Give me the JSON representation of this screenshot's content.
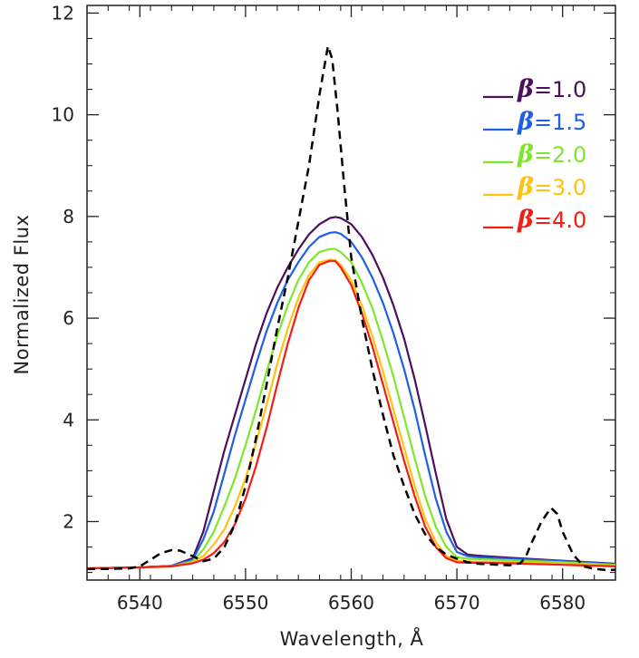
{
  "chart_data": {
    "type": "line",
    "xlabel": "Wavelength, Å",
    "ylabel": "Normalized Flux",
    "xlim": [
      6535,
      6585
    ],
    "ylim": [
      0.85,
      12.15
    ],
    "xticks": [
      6540,
      6550,
      6560,
      6570,
      6580
    ],
    "yticks": [
      2,
      4,
      6,
      8,
      10,
      12
    ],
    "xtick_labels": [
      "6540",
      "6550",
      "6560",
      "6570",
      "6580"
    ],
    "ytick_labels": [
      "2",
      "4",
      "6",
      "8",
      "10",
      "12"
    ],
    "grid": false,
    "legend_position": "top-right",
    "legend_symbol": "β",
    "observed": {
      "style": "dashed",
      "color": "#000000",
      "x": [
        6535,
        6537,
        6539,
        6540,
        6541,
        6542,
        6543,
        6543.8,
        6545,
        6546,
        6547,
        6548,
        6549,
        6550,
        6551,
        6552,
        6553,
        6554,
        6555,
        6556,
        6557,
        6557.8,
        6558.2,
        6558.7,
        6559.3,
        6560,
        6561,
        6562,
        6563,
        6564,
        6565,
        6566,
        6567,
        6568,
        6569,
        6570,
        6571,
        6572,
        6573,
        6574,
        6575,
        6576,
        6576.5,
        6577,
        6578,
        6578.9,
        6579.5,
        6580,
        6581,
        6582,
        6583,
        6584,
        6585
      ],
      "y": [
        1.07,
        1.07,
        1.08,
        1.12,
        1.25,
        1.38,
        1.44,
        1.43,
        1.32,
        1.22,
        1.27,
        1.5,
        1.95,
        2.7,
        3.65,
        4.7,
        5.8,
        6.8,
        7.9,
        9.0,
        10.4,
        11.35,
        11.1,
        10.1,
        8.7,
        7.2,
        6.0,
        5.0,
        4.1,
        3.3,
        2.7,
        2.15,
        1.75,
        1.5,
        1.35,
        1.27,
        1.2,
        1.17,
        1.16,
        1.15,
        1.14,
        1.18,
        1.3,
        1.55,
        2.0,
        2.27,
        2.15,
        1.8,
        1.35,
        1.12,
        1.07,
        1.05,
        1.05
      ]
    },
    "series": [
      {
        "name": "1.0",
        "color": "#4b0f5e",
        "x": [
          6535,
          6540,
          6543,
          6545,
          6546,
          6547,
          6548,
          6549,
          6550,
          6551,
          6552,
          6553,
          6554,
          6555,
          6556,
          6557,
          6558,
          6558.5,
          6559,
          6560,
          6561,
          6562,
          6563,
          6564,
          6565,
          6566,
          6567,
          6568,
          6569,
          6570,
          6571,
          6572,
          6575,
          6580,
          6585
        ],
        "y": [
          1.08,
          1.1,
          1.13,
          1.28,
          1.8,
          2.6,
          3.4,
          4.1,
          4.8,
          5.5,
          6.1,
          6.6,
          7.0,
          7.35,
          7.65,
          7.85,
          7.97,
          7.99,
          7.97,
          7.85,
          7.6,
          7.25,
          6.8,
          6.25,
          5.6,
          4.8,
          3.9,
          2.95,
          2.05,
          1.5,
          1.35,
          1.33,
          1.29,
          1.23,
          1.17
        ]
      },
      {
        "name": "1.5",
        "color": "#1f5fe6",
        "x": [
          6535,
          6540,
          6543,
          6545,
          6546,
          6547,
          6548,
          6549,
          6550,
          6551,
          6552,
          6553,
          6554,
          6555,
          6556,
          6557,
          6558,
          6558.5,
          6559,
          6560,
          6561,
          6562,
          6563,
          6564,
          6565,
          6566,
          6567,
          6568,
          6569,
          6570,
          6571,
          6572,
          6575,
          6580,
          6585
        ],
        "y": [
          1.08,
          1.1,
          1.13,
          1.25,
          1.65,
          2.2,
          2.95,
          3.7,
          4.4,
          5.1,
          5.75,
          6.3,
          6.75,
          7.1,
          7.4,
          7.6,
          7.68,
          7.69,
          7.66,
          7.5,
          7.2,
          6.8,
          6.3,
          5.7,
          5.0,
          4.2,
          3.3,
          2.45,
          1.8,
          1.4,
          1.32,
          1.3,
          1.27,
          1.22,
          1.16
        ]
      },
      {
        "name": "2.0",
        "color": "#7fe72a",
        "x": [
          6535,
          6540,
          6543,
          6545,
          6546,
          6547,
          6548,
          6549,
          6550,
          6551,
          6552,
          6553,
          6554,
          6555,
          6556,
          6557,
          6558,
          6558.5,
          6559,
          6560,
          6561,
          6562,
          6563,
          6564,
          6565,
          6566,
          6567,
          6568,
          6569,
          6570,
          6571,
          6572,
          6575,
          6580,
          6585
        ],
        "y": [
          1.08,
          1.1,
          1.12,
          1.22,
          1.45,
          1.8,
          2.3,
          2.85,
          3.5,
          4.2,
          4.95,
          5.65,
          6.25,
          6.75,
          7.1,
          7.3,
          7.36,
          7.36,
          7.3,
          7.1,
          6.7,
          6.2,
          5.55,
          4.85,
          4.05,
          3.25,
          2.5,
          1.9,
          1.5,
          1.3,
          1.27,
          1.26,
          1.24,
          1.2,
          1.15
        ]
      },
      {
        "name": "3.0",
        "color": "#ffc20e",
        "x": [
          6535,
          6540,
          6543,
          6545,
          6546,
          6547,
          6548,
          6549,
          6550,
          6551,
          6552,
          6553,
          6554,
          6555,
          6556,
          6557,
          6558,
          6558.5,
          6559,
          6560,
          6561,
          6562,
          6563,
          6564,
          6565,
          6566,
          6567,
          6568,
          6569,
          6570,
          6571,
          6572,
          6575,
          6580,
          6585
        ],
        "y": [
          1.08,
          1.1,
          1.12,
          1.2,
          1.32,
          1.55,
          1.85,
          2.3,
          2.85,
          3.55,
          4.3,
          5.1,
          5.8,
          6.4,
          6.85,
          7.1,
          7.15,
          7.14,
          7.05,
          6.75,
          6.25,
          5.65,
          4.95,
          4.2,
          3.45,
          2.7,
          2.05,
          1.6,
          1.32,
          1.23,
          1.22,
          1.21,
          1.2,
          1.17,
          1.13
        ]
      },
      {
        "name": "4.0",
        "color": "#f01e14",
        "x": [
          6535,
          6540,
          6543,
          6545,
          6546,
          6547,
          6548,
          6549,
          6550,
          6551,
          6552,
          6553,
          6554,
          6555,
          6556,
          6557,
          6558,
          6558.5,
          6559,
          6560,
          6561,
          6562,
          6563,
          6564,
          6565,
          6566,
          6567,
          6568,
          6569,
          6570,
          6571,
          6572,
          6575,
          6580,
          6585
        ],
        "y": [
          1.08,
          1.1,
          1.12,
          1.18,
          1.25,
          1.38,
          1.6,
          1.95,
          2.45,
          3.1,
          3.85,
          4.7,
          5.5,
          6.2,
          6.75,
          7.05,
          7.13,
          7.12,
          7.0,
          6.65,
          6.1,
          5.45,
          4.7,
          3.95,
          3.2,
          2.5,
          1.9,
          1.5,
          1.28,
          1.2,
          1.19,
          1.19,
          1.18,
          1.15,
          1.12
        ]
      }
    ]
  }
}
